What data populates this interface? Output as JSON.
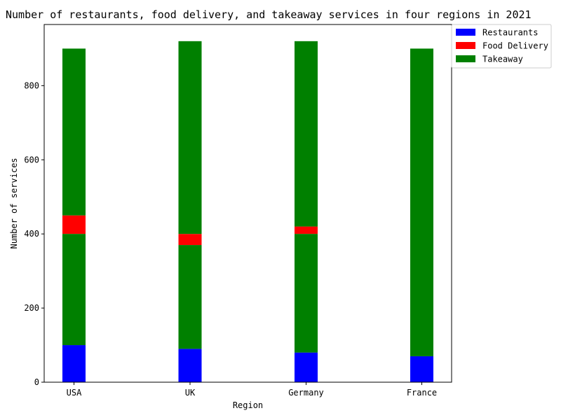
{
  "chart_data": {
    "type": "bar",
    "stacked": true,
    "title": "Number of restaurants, food delivery, and takeaway services in four regions in 2021",
    "xlabel": "Region",
    "ylabel": "Number of services",
    "categories": [
      "USA",
      "UK",
      "Germany",
      "France"
    ],
    "ylim": [
      0,
      965
    ],
    "yticks": [
      0,
      200,
      400,
      600,
      800
    ],
    "grid": false,
    "legend_position": "upper-right-outside",
    "series": [
      {
        "name": "Restaurants",
        "color": "#0000ff",
        "segments": [
          {
            "bottom": 0,
            "top": 100
          },
          {
            "bottom": 0,
            "top": 90
          },
          {
            "bottom": 0,
            "top": 80
          },
          {
            "bottom": 0,
            "top": 70
          }
        ]
      },
      {
        "name": "Food Delivery",
        "color": "#ff0000",
        "segments": [
          {
            "bottom": 400,
            "top": 450
          },
          {
            "bottom": 370,
            "top": 400
          },
          {
            "bottom": 400,
            "top": 420
          },
          {
            "bottom": 0,
            "top": 0
          }
        ]
      },
      {
        "name": "Takeaway",
        "color": "#008000",
        "segments": [
          [
            {
              "bottom": 100,
              "top": 400
            },
            {
              "bottom": 450,
              "top": 900
            }
          ],
          [
            {
              "bottom": 90,
              "top": 370
            },
            {
              "bottom": 400,
              "top": 920
            }
          ],
          [
            {
              "bottom": 80,
              "top": 400
            },
            {
              "bottom": 420,
              "top": 920
            }
          ],
          [
            {
              "bottom": 70,
              "top": 900
            }
          ]
        ]
      }
    ]
  }
}
